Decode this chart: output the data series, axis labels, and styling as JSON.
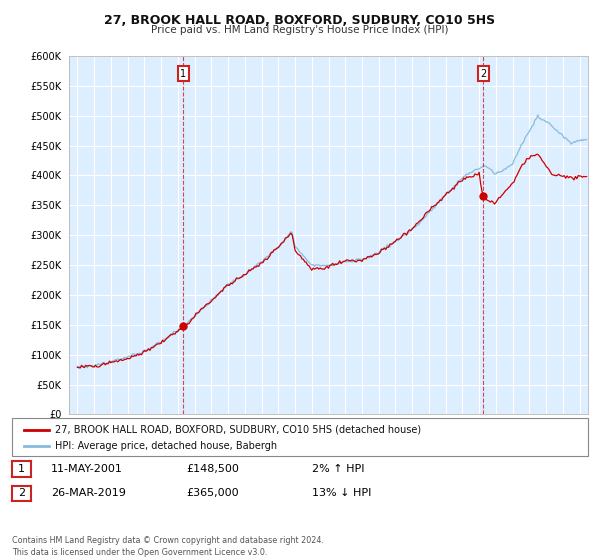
{
  "title": "27, BROOK HALL ROAD, BOXFORD, SUDBURY, CO10 5HS",
  "subtitle": "Price paid vs. HM Land Registry's House Price Index (HPI)",
  "legend_label_red": "27, BROOK HALL ROAD, BOXFORD, SUDBURY, CO10 5HS (detached house)",
  "legend_label_blue": "HPI: Average price, detached house, Babergh",
  "annotation1_date": "11-MAY-2001",
  "annotation1_price": "£148,500",
  "annotation1_hpi": "2% ↑ HPI",
  "annotation2_date": "26-MAR-2019",
  "annotation2_price": "£365,000",
  "annotation2_hpi": "13% ↓ HPI",
  "footer": "Contains HM Land Registry data © Crown copyright and database right 2024.\nThis data is licensed under the Open Government Licence v3.0.",
  "ylim": [
    0,
    600000
  ],
  "yticks": [
    0,
    50000,
    100000,
    150000,
    200000,
    250000,
    300000,
    350000,
    400000,
    450000,
    500000,
    550000,
    600000
  ],
  "red_color": "#cc0000",
  "blue_color": "#88bbdd",
  "annotation_box_color": "#cc2222",
  "background_color": "#ffffff",
  "plot_bg_color": "#ddeeff",
  "grid_color": "#ffffff"
}
